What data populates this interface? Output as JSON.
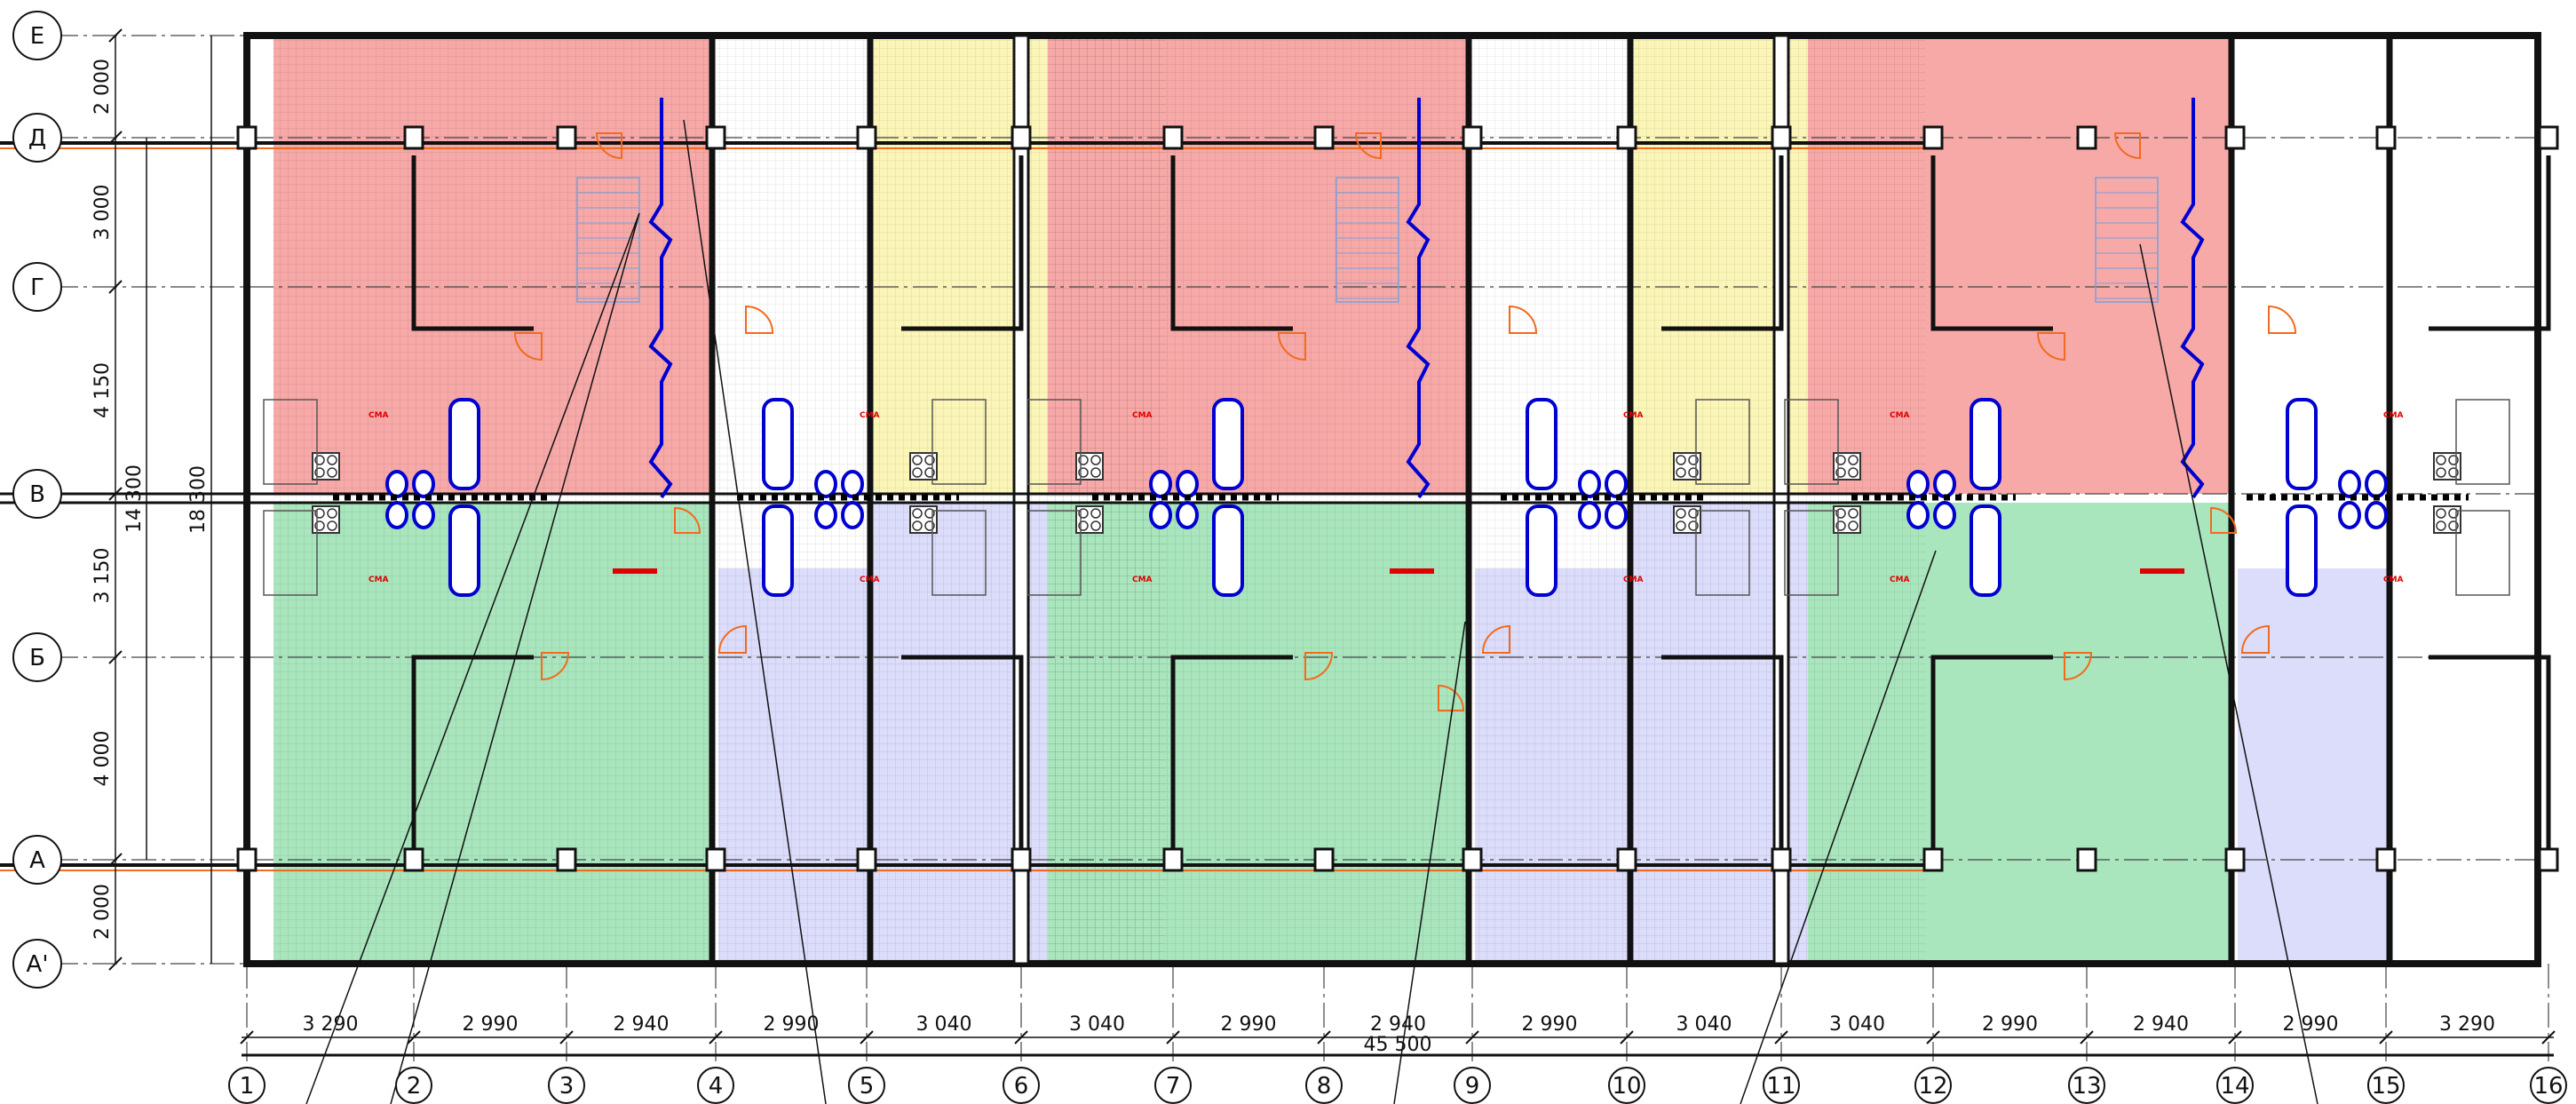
{
  "colors": {
    "apartment_red": "#f7a9a8",
    "apartment_yellow": "#fbf6b8",
    "apartment_green": "#a9e5bd",
    "apartment_violet": "#dcdcfb",
    "stair": "#ffffff",
    "wall": "#111111",
    "door": "#f26a1b",
    "plumbing": "#0000d0",
    "cma_label": "#e00000",
    "grid_line": "#444444"
  },
  "rows": [
    {
      "id": "row-E",
      "label": "Е",
      "dim_after": "2 000"
    },
    {
      "id": "row-D",
      "label": "Д",
      "dim_after": "3 000"
    },
    {
      "id": "row-G",
      "label": "Г",
      "dim_after": "4 150"
    },
    {
      "id": "row-V",
      "label": "В",
      "dim_after": "3 150"
    },
    {
      "id": "row-B",
      "label": "Б",
      "dim_after": "4 000"
    },
    {
      "id": "row-A",
      "label": "А",
      "dim_after": "2 000"
    },
    {
      "id": "row-A1",
      "label": "А'",
      "dim_after": null
    }
  ],
  "row_dims": [
    "2 000",
    "3 000",
    "4 150",
    "3 150",
    "4 000",
    "2 000"
  ],
  "overall_row_dims": {
    "inner": "14 300",
    "outer": "18 300"
  },
  "columns": [
    {
      "label": "1"
    },
    {
      "label": "2"
    },
    {
      "label": "3"
    },
    {
      "label": "4"
    },
    {
      "label": "5"
    },
    {
      "label": "6"
    },
    {
      "label": "7"
    },
    {
      "label": "8"
    },
    {
      "label": "9"
    },
    {
      "label": "10"
    },
    {
      "label": "11"
    },
    {
      "label": "12"
    },
    {
      "label": "13"
    },
    {
      "label": "14"
    },
    {
      "label": "15"
    },
    {
      "label": "16"
    }
  ],
  "col_dims": [
    "3 290",
    "2 990",
    "2 940",
    "2 990",
    "3 040",
    "3 040",
    "2 990",
    "2 940",
    "2 990",
    "3 040",
    "3 040",
    "2 990",
    "2 940",
    "2 990",
    "3 290"
  ],
  "overall_col_dim": "45 500",
  "appliance_label": "СМА"
}
